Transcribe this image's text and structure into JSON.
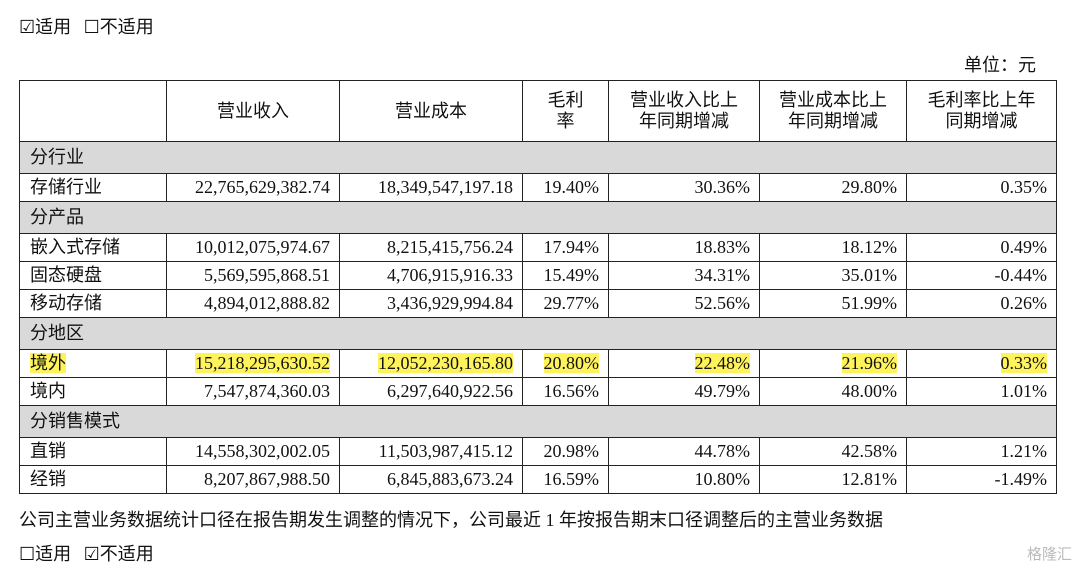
{
  "top_options": {
    "applicable": "☑适用",
    "not_applicable": "☐不适用"
  },
  "unit": "单位：元",
  "table": {
    "columns": [
      "营业收入",
      "营业成本",
      "毛利率",
      "营业收入比上年同期增减",
      "营业成本比上年同期增减",
      "毛利率比上年同期增减"
    ],
    "sections": [
      {
        "title": "分行业",
        "rows": [
          {
            "cells": [
              "存储行业",
              "22,765,629,382.74",
              "18,349,547,197.18",
              "19.40%",
              "30.36%",
              "29.80%",
              "0.35%"
            ]
          }
        ]
      },
      {
        "title": "分产品",
        "rows": [
          {
            "cells": [
              "嵌入式存储",
              "10,012,075,974.67",
              "8,215,415,756.24",
              "17.94%",
              "18.83%",
              "18.12%",
              "0.49%"
            ]
          },
          {
            "cells": [
              "固态硬盘",
              "5,569,595,868.51",
              "4,706,915,916.33",
              "15.49%",
              "34.31%",
              "35.01%",
              "-0.44%"
            ]
          },
          {
            "cells": [
              "移动存储",
              "4,894,012,888.82",
              "3,436,929,994.84",
              "29.77%",
              "52.56%",
              "51.99%",
              "0.26%"
            ]
          }
        ]
      },
      {
        "title": "分地区",
        "rows": [
          {
            "cells": [
              "境外",
              "15,218,295,630.52",
              "12,052,230,165.80",
              "20.80%",
              "22.48%",
              "21.96%",
              "0.33%"
            ],
            "highlighted": true
          },
          {
            "cells": [
              "境内",
              "7,547,874,360.03",
              "6,297,640,922.56",
              "16.56%",
              "49.79%",
              "48.00%",
              "1.01%"
            ]
          }
        ]
      },
      {
        "title": "分销售模式",
        "rows": [
          {
            "cells": [
              "直销",
              "14,558,302,002.05",
              "11,503,987,415.12",
              "20.98%",
              "44.78%",
              "42.58%",
              "1.21%"
            ]
          },
          {
            "cells": [
              "经销",
              "8,207,867,988.50",
              "6,845,883,673.24",
              "16.59%",
              "10.80%",
              "12.81%",
              "-1.49%"
            ]
          }
        ]
      }
    ]
  },
  "note": "公司主营业务数据统计口径在报告期发生调整的情况下，公司最近 1 年按报告期末口径调整后的主营业务数据",
  "bottom_options": {
    "applicable": "☐适用",
    "not_applicable": "☑不适用"
  },
  "watermark": "格隆汇"
}
